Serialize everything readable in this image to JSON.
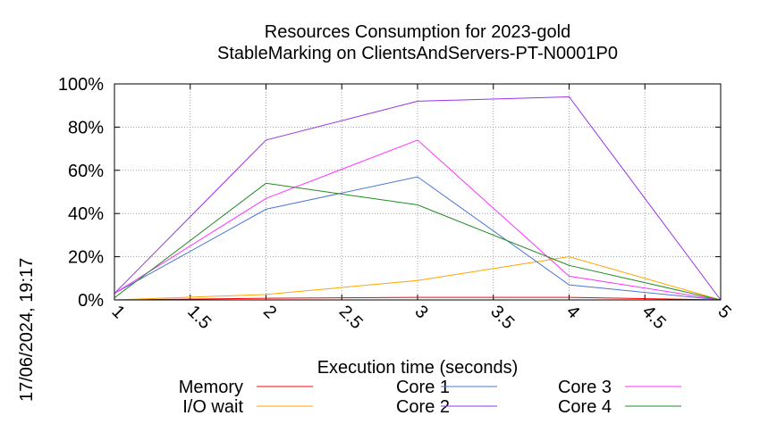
{
  "chart_data": {
    "type": "line",
    "title": "Resources Consumption for 2023-gold",
    "subtitle": "StableMarking on ClientsAndServers-PT-N0001P0",
    "xlabel": "Execution time (seconds)",
    "ylabel": "",
    "timestamp": "17/06/2024, 19:17",
    "xlim": [
      1,
      5
    ],
    "ylim": [
      0,
      100
    ],
    "x_ticks": [
      1,
      1.5,
      2,
      2.5,
      3,
      3.5,
      4,
      4.5,
      5
    ],
    "x_tick_labels": [
      "1",
      "1.5",
      "2",
      "2.5",
      "3",
      "3.5",
      "4",
      "4.5",
      "5"
    ],
    "y_ticks": [
      0,
      20,
      40,
      60,
      80,
      100
    ],
    "y_tick_labels": [
      "0%",
      "20%",
      "40%",
      "60%",
      "80%",
      "100%"
    ],
    "grid": true,
    "legend_position": "bottom",
    "series": [
      {
        "name": "Memory",
        "color": "#ff0000",
        "x": [
          1,
          2,
          3,
          4,
          5
        ],
        "values": [
          0,
          0.8,
          1.2,
          1.2,
          0
        ]
      },
      {
        "name": "I/O wait",
        "color": "#ffa500",
        "x": [
          1,
          2,
          3,
          4,
          5
        ],
        "values": [
          0,
          2.5,
          9,
          20,
          0
        ]
      },
      {
        "name": "Core 1",
        "color": "#4a78d0",
        "x": [
          1,
          2,
          3,
          4,
          5
        ],
        "values": [
          3,
          42,
          57,
          7,
          0
        ]
      },
      {
        "name": "Core 2",
        "color": "#9933e6",
        "x": [
          1,
          2,
          3,
          4,
          5
        ],
        "values": [
          3,
          74,
          92,
          94,
          0
        ]
      },
      {
        "name": "Core 3",
        "color": "#ff33ff",
        "x": [
          1,
          2,
          3,
          4,
          5
        ],
        "values": [
          3,
          47,
          74,
          11,
          0
        ]
      },
      {
        "name": "Core 4",
        "color": "#228b22",
        "x": [
          1,
          2,
          3,
          4,
          5
        ],
        "values": [
          1,
          54,
          44,
          16,
          0
        ]
      }
    ]
  }
}
